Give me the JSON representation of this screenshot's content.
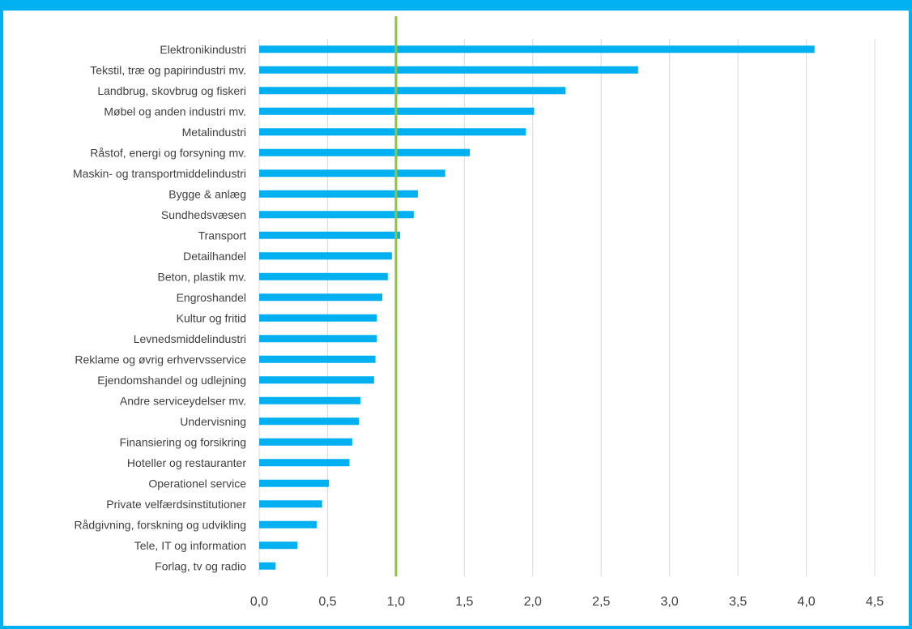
{
  "chart_data": {
    "type": "bar",
    "orientation": "horizontal",
    "categories": [
      "Elektronikindustri",
      "Tekstil, træ og papirindustri mv.",
      "Landbrug, skovbrug og fiskeri",
      "Møbel og anden industri mv.",
      "Metalindustri",
      "Råstof, energi og forsyning mv.",
      "Maskin- og transportmiddelindustri",
      "Bygge & anlæg",
      "Sundhedsvæsen",
      "Transport",
      "Detailhandel",
      "Beton, plastik mv.",
      "Engroshandel",
      "Kultur og fritid",
      "Levnedsmiddelindustri",
      "Reklame og øvrig erhvervsservice",
      "Ejendomshandel og udlejning",
      "Andre serviceydelser mv.",
      "Undervisning",
      "Finansiering og forsikring",
      "Hoteller og restauranter",
      "Operationel service",
      "Private velfærdsinstitutioner",
      "Rådgivning, forskning og udvikling",
      "Tele, IT og information",
      "Forlag, tv og radio"
    ],
    "values": [
      4.06,
      2.77,
      2.24,
      2.01,
      1.95,
      1.54,
      1.36,
      1.16,
      1.13,
      1.03,
      0.97,
      0.94,
      0.9,
      0.86,
      0.86,
      0.85,
      0.84,
      0.74,
      0.73,
      0.68,
      0.66,
      0.51,
      0.46,
      0.42,
      0.28,
      0.12
    ],
    "title": "",
    "xlabel": "",
    "ylabel": "",
    "xlim": [
      0,
      4.5
    ],
    "ticks": [
      "0,0",
      "0,5",
      "1,0",
      "1,5",
      "2,0",
      "2,5",
      "3,0",
      "3,5",
      "4,0",
      "4,5"
    ],
    "tick_values": [
      0,
      0.5,
      1,
      1.5,
      2,
      2.5,
      3,
      3.5,
      4,
      4.5
    ],
    "reference_line": 1.0,
    "grid": "vertical",
    "colors": {
      "bar": "#00B0F0",
      "reference_line": "#8CC63F",
      "grid": "#D9D9D9",
      "frame": "#00B0F0",
      "text": "#404040"
    }
  }
}
